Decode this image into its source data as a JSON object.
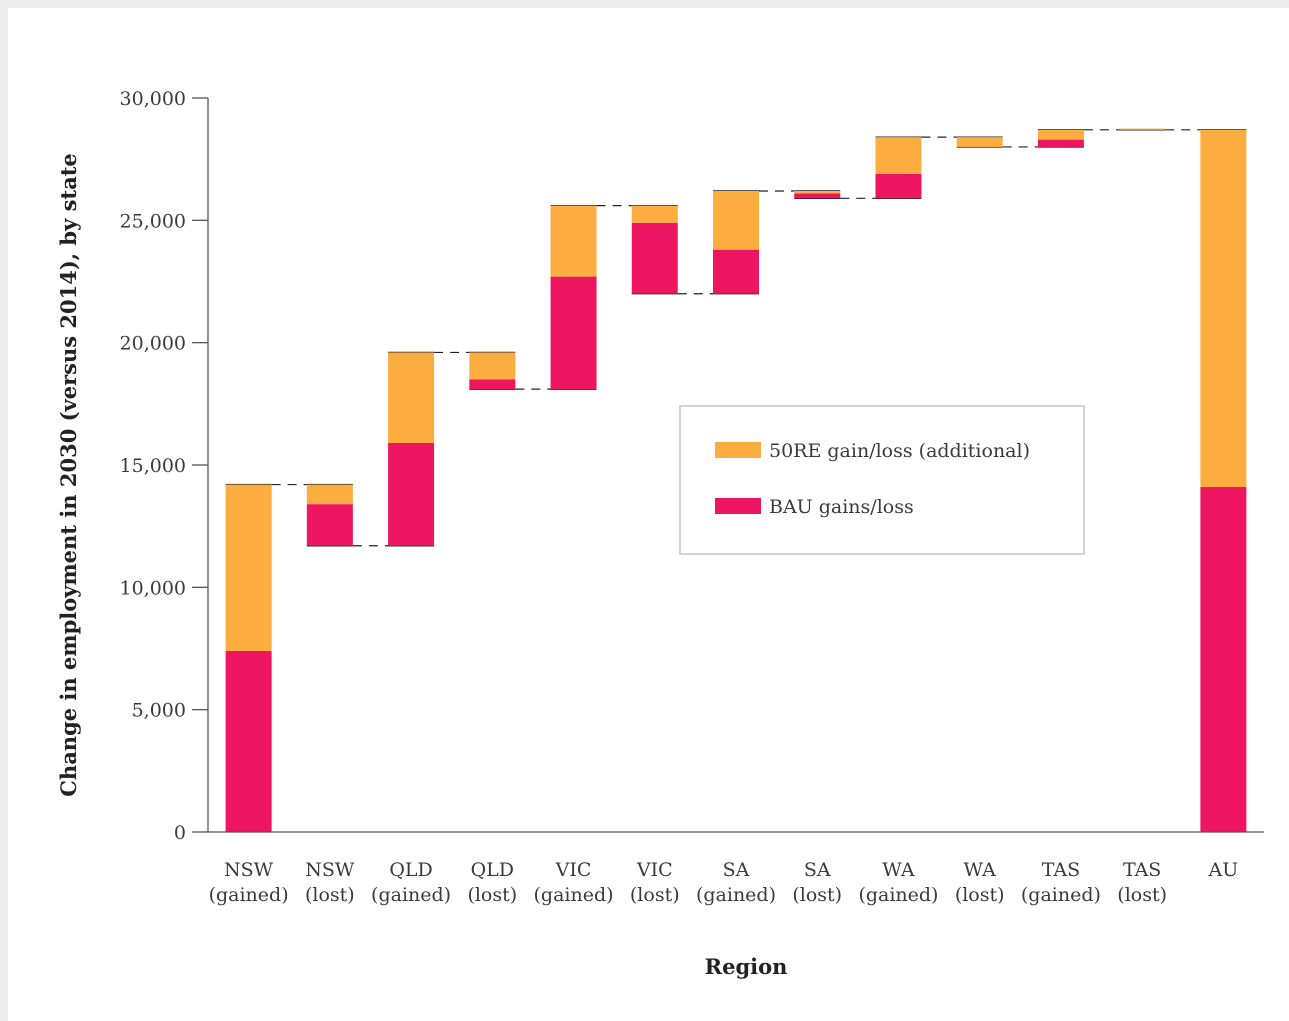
{
  "chart_data": {
    "type": "bar",
    "subtype": "waterfall-stacked",
    "title": "",
    "xlabel": "Region",
    "ylabel": "Change in employment in 2030 (versus 2014), by state",
    "ylim": [
      0,
      30000
    ],
    "yticks": [
      0,
      5000,
      10000,
      15000,
      20000,
      25000,
      30000
    ],
    "ytick_labels": [
      "0",
      "5,000",
      "10,000",
      "15,000",
      "20,000",
      "25,000",
      "30,000"
    ],
    "grid": false,
    "legend_position": "center-right",
    "categories": [
      {
        "line1": "NSW",
        "line2": "(gained)"
      },
      {
        "line1": "NSW",
        "line2": "(lost)"
      },
      {
        "line1": "QLD",
        "line2": "(gained)"
      },
      {
        "line1": "QLD",
        "line2": "(lost)"
      },
      {
        "line1": "VIC",
        "line2": "(gained)"
      },
      {
        "line1": "VIC",
        "line2": "(lost)"
      },
      {
        "line1": "SA",
        "line2": "(gained)"
      },
      {
        "line1": "SA",
        "line2": "(lost)"
      },
      {
        "line1": "WA",
        "line2": "(gained)"
      },
      {
        "line1": "WA",
        "line2": "(lost)"
      },
      {
        "line1": "TAS",
        "line2": "(gained)"
      },
      {
        "line1": "TAS",
        "line2": "(lost)"
      },
      {
        "line1": "AU",
        "line2": ""
      }
    ],
    "series": [
      {
        "name": "BAU gains/loss",
        "color": "#ee1660",
        "ranges": [
          [
            0,
            7400
          ],
          [
            11700,
            13400
          ],
          [
            11700,
            15900
          ],
          [
            18100,
            18500
          ],
          [
            18100,
            22700
          ],
          [
            22000,
            24900
          ],
          [
            22000,
            23800
          ],
          [
            25900,
            26100
          ],
          [
            25900,
            26900
          ],
          [
            28000,
            28000
          ],
          [
            28000,
            28300
          ],
          [
            28700,
            28700
          ],
          [
            0,
            14100
          ]
        ]
      },
      {
        "name": "50RE gain/loss (additional)",
        "color": "#fbae3f",
        "ranges": [
          [
            7400,
            14200
          ],
          [
            13400,
            14200
          ],
          [
            15900,
            19600
          ],
          [
            18500,
            19600
          ],
          [
            22700,
            25600
          ],
          [
            24900,
            25600
          ],
          [
            23800,
            26200
          ],
          [
            26100,
            26200
          ],
          [
            26900,
            28400
          ],
          [
            28000,
            28400
          ],
          [
            28300,
            28700
          ],
          [
            28700,
            28750
          ],
          [
            14100,
            28700
          ]
        ]
      }
    ],
    "legend": [
      {
        "label": "50RE gain/loss (additional)",
        "color": "#fbae3f"
      },
      {
        "label": "BAU gains/loss",
        "color": "#ee1660"
      }
    ]
  }
}
